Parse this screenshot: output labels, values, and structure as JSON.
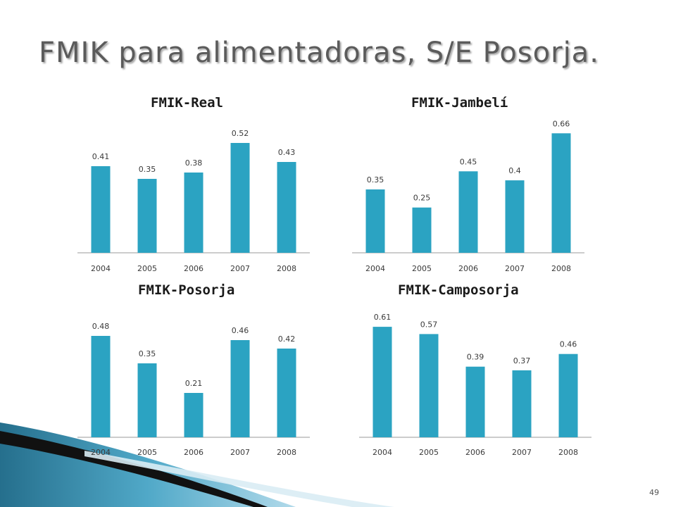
{
  "slide": {
    "title": "FMIK para alimentadoras, S/E Posorja.",
    "page_number": "49"
  },
  "colors": {
    "bar": "#2ba3c2",
    "axis": "#9a9a9a",
    "label": "#3a3a3a",
    "title_text": "#5b5b5b"
  },
  "chart_data": [
    {
      "type": "bar",
      "title": "FMIK-Real",
      "categories": [
        "2004",
        "2005",
        "2006",
        "2007",
        "2008"
      ],
      "values": [
        0.41,
        0.35,
        0.38,
        0.52,
        0.43
      ],
      "data_labels": [
        "0.41",
        "0.35",
        "0.38",
        "0.52",
        "0.43"
      ],
      "ylim": [
        0,
        0.6
      ],
      "grid": false,
      "legend": "none"
    },
    {
      "type": "bar",
      "title": "FMIK-Jambelí",
      "categories": [
        "2004",
        "2005",
        "2006",
        "2007",
        "2008"
      ],
      "values": [
        0.35,
        0.25,
        0.45,
        0.4,
        0.66
      ],
      "data_labels": [
        "0.35",
        "0.25",
        "0.45",
        "0.4",
        "0.66"
      ],
      "ylim": [
        0,
        0.7
      ],
      "grid": false,
      "legend": "none"
    },
    {
      "type": "bar",
      "title": "FMIK-Posorja",
      "categories": [
        "2004",
        "2005",
        "2006",
        "2007",
        "2008"
      ],
      "values": [
        0.48,
        0.35,
        0.21,
        0.46,
        0.42
      ],
      "data_labels": [
        "0.48",
        "0.35",
        "0.21",
        "0.46",
        "0.42"
      ],
      "ylim": [
        0,
        0.6
      ],
      "grid": false,
      "legend": "none"
    },
    {
      "type": "bar",
      "title": "FMIK-Camposorja",
      "categories": [
        "2004",
        "2005",
        "2006",
        "2007",
        "2008"
      ],
      "values": [
        0.61,
        0.57,
        0.39,
        0.37,
        0.46
      ],
      "data_labels": [
        "0.61",
        "0.57",
        "0.39",
        "0.37",
        "0.46"
      ],
      "ylim": [
        0,
        0.7
      ],
      "grid": false,
      "legend": "none"
    }
  ]
}
